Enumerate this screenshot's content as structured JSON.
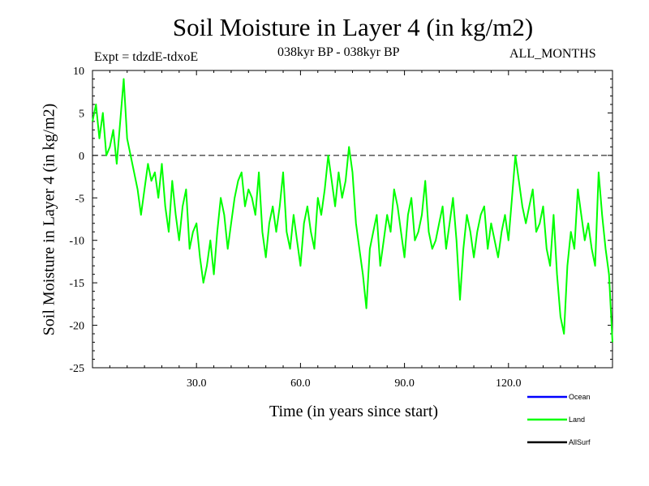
{
  "chart_data": {
    "type": "line",
    "title": "Soil Moisture in Layer 4 (in kg/m2)",
    "subtitle_left": "Expt = tdzdE-tdxoE",
    "subtitle_center": "038kyr BP - 038kyr BP",
    "subtitle_right": "ALL_MONTHS",
    "xlabel": "Time (in years since start)",
    "ylabel": "Soil Moisture in Layer 4 (in kg/m2)",
    "xlim": [
      0,
      150
    ],
    "ylim": [
      -25,
      10
    ],
    "xticks": [
      30,
      60,
      90,
      120
    ],
    "xtick_labels": [
      "30.0",
      "60.0",
      "90.0",
      "120.0"
    ],
    "yticks": [
      -25,
      -20,
      -15,
      -10,
      -5,
      0,
      5,
      10
    ],
    "ytick_labels": [
      "-25",
      "-20",
      "-15",
      "-10",
      "-5",
      "0",
      "5",
      "10"
    ],
    "reference_line": 0,
    "legend": [
      {
        "name": "Ocean",
        "color": "#0000ff"
      },
      {
        "name": "Land",
        "color": "#00ff00"
      },
      {
        "name": "AllSurf",
        "color": "#000000"
      }
    ],
    "series": [
      {
        "name": "Land",
        "color": "#00ff00",
        "x": [
          0,
          1,
          2,
          3,
          4,
          5,
          6,
          7,
          8,
          9,
          10,
          11,
          12,
          13,
          14,
          15,
          16,
          17,
          18,
          19,
          20,
          21,
          22,
          23,
          24,
          25,
          26,
          27,
          28,
          29,
          30,
          31,
          32,
          33,
          34,
          35,
          36,
          37,
          38,
          39,
          40,
          41,
          42,
          43,
          44,
          45,
          46,
          47,
          48,
          49,
          50,
          51,
          52,
          53,
          54,
          55,
          56,
          57,
          58,
          59,
          60,
          61,
          62,
          63,
          64,
          65,
          66,
          67,
          68,
          69,
          70,
          71,
          72,
          73,
          74,
          75,
          76,
          77,
          78,
          79,
          80,
          81,
          82,
          83,
          84,
          85,
          86,
          87,
          88,
          89,
          90,
          91,
          92,
          93,
          94,
          95,
          96,
          97,
          98,
          99,
          100,
          101,
          102,
          103,
          104,
          105,
          106,
          107,
          108,
          109,
          110,
          111,
          112,
          113,
          114,
          115,
          116,
          117,
          118,
          119,
          120,
          121,
          122,
          123,
          124,
          125,
          126,
          127,
          128,
          129,
          130,
          131,
          132,
          133,
          134,
          135,
          136,
          137,
          138,
          139,
          140,
          141,
          142,
          143,
          144,
          145,
          146,
          147,
          148,
          149,
          150
        ],
        "y": [
          4,
          6,
          2,
          5,
          0,
          1,
          3,
          -1,
          4,
          9,
          2,
          0,
          -2,
          -4,
          -7,
          -4,
          -1,
          -3,
          -2,
          -5,
          -1,
          -6,
          -9,
          -3,
          -7,
          -10,
          -6,
          -4,
          -11,
          -9,
          -8,
          -12,
          -15,
          -13,
          -10,
          -14,
          -9,
          -5,
          -7,
          -11,
          -8,
          -5,
          -3,
          -2,
          -6,
          -4,
          -5,
          -7,
          -2,
          -9,
          -12,
          -8,
          -6,
          -9,
          -6,
          -2,
          -9,
          -11,
          -7,
          -10,
          -13,
          -8,
          -6,
          -9,
          -11,
          -5,
          -7,
          -4,
          0,
          -3,
          -6,
          -2,
          -5,
          -3,
          1,
          -2,
          -8,
          -11,
          -14,
          -18,
          -11,
          -9,
          -7,
          -13,
          -10,
          -7,
          -9,
          -4,
          -6,
          -9,
          -12,
          -7,
          -5,
          -10,
          -9,
          -7,
          -3,
          -9,
          -11,
          -10,
          -8,
          -6,
          -11,
          -8,
          -5,
          -10,
          -17,
          -11,
          -7,
          -9,
          -12,
          -9,
          -7,
          -6,
          -11,
          -8,
          -10,
          -12,
          -9,
          -7,
          -10,
          -5,
          0,
          -3,
          -6,
          -8,
          -6,
          -4,
          -9,
          -8,
          -6,
          -11,
          -13,
          -7,
          -14,
          -19,
          -21,
          -13,
          -9,
          -11,
          -4,
          -7,
          -10,
          -8,
          -11,
          -13,
          -2,
          -7,
          -11,
          -14,
          -22
        ]
      }
    ]
  }
}
